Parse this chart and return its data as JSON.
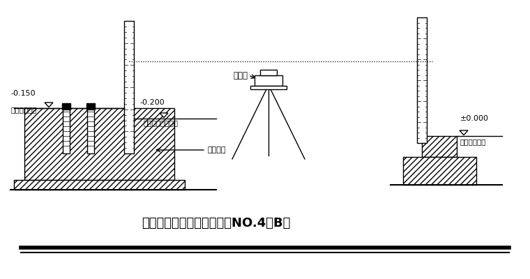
{
  "title": "钢柱柱底标高引测示意图（NO.4－B）",
  "title_fontsize": 13,
  "background_color": "#ffffff",
  "label_neg0150": "-0.150",
  "label_zhudingbiaogao": "（柱顶标高）",
  "label_neg0200": "-0.200",
  "label_yicibiaogao": "（一次浇筑标高）",
  "label_shuizhunyi": "水准仪",
  "label_gangjin": "钢筋砼柱",
  "label_pm0000": "±0.000",
  "label_jizhuanbiaogao": "（基准标高）"
}
